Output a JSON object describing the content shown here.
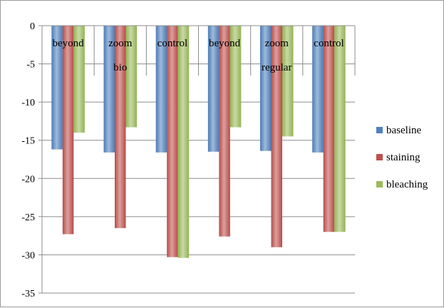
{
  "chart_data": {
    "type": "bar",
    "categories": [
      "beyond",
      "zoom",
      "control",
      "beyond",
      "zoom",
      "control"
    ],
    "group_labels": [
      "bio",
      "regular"
    ],
    "series": [
      {
        "name": "baseline",
        "color": "#4f81bd",
        "values": [
          -16.2,
          -16.6,
          -16.6,
          -16.5,
          -16.4,
          -16.6
        ]
      },
      {
        "name": "staining",
        "color": "#c0504d",
        "values": [
          -27.3,
          -26.5,
          -30.3,
          -27.6,
          -29.0,
          -27.0
        ]
      },
      {
        "name": "bleaching",
        "color": "#9bbb59",
        "values": [
          -14.0,
          -13.3,
          -30.4,
          -13.3,
          -14.5,
          -27.0
        ]
      }
    ],
    "ylim": [
      -35,
      0
    ],
    "y_ticks": [
      "0",
      "-5",
      "-10",
      "-15",
      "-20",
      "-25",
      "-30",
      "-35"
    ],
    "grid": true,
    "legend": "right",
    "title": "",
    "xlabel": "",
    "ylabel": ""
  }
}
